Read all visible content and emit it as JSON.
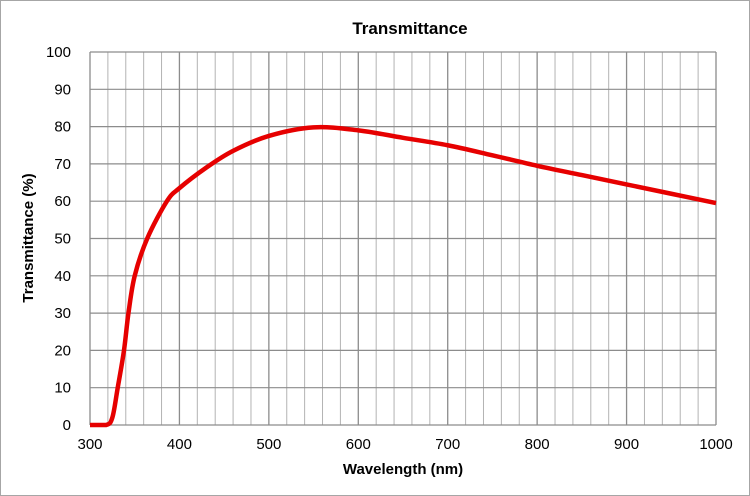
{
  "chart_data": {
    "type": "line",
    "title": "Transmittance",
    "xlabel": "Wavelength (nm)",
    "ylabel": "Transmittance (%)",
    "xlim": [
      300,
      1000
    ],
    "ylim": [
      0,
      100
    ],
    "x_major_ticks": [
      300,
      400,
      500,
      600,
      700,
      800,
      900,
      1000
    ],
    "x_minor_step": 20,
    "y_ticks": [
      0,
      10,
      20,
      30,
      40,
      50,
      60,
      70,
      80,
      90,
      100
    ],
    "grid": true,
    "legend": "none",
    "series": [
      {
        "color": "#e60000",
        "x": [
          300,
          318,
          325,
          331,
          338,
          343,
          350,
          364,
          386,
          400,
          430,
          460,
          500,
          550,
          600,
          650,
          700,
          750,
          800,
          850,
          900,
          950,
          1000
        ],
        "y": [
          0,
          0,
          2,
          10,
          20,
          30,
          40,
          50,
          60,
          63.5,
          69,
          73.5,
          77.5,
          79.8,
          79,
          77,
          75,
          72.3,
          69.5,
          67,
          64.5,
          62,
          59.5
        ]
      }
    ]
  }
}
